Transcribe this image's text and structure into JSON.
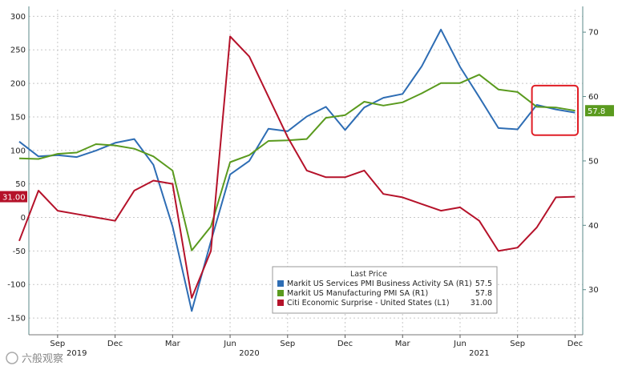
{
  "chart_data": {
    "type": "line",
    "grid": true,
    "x": [
      "2019-07",
      "2019-08",
      "2019-09",
      "2019-10",
      "2019-11",
      "2019-12",
      "2020-01",
      "2020-02",
      "2020-03",
      "2020-04",
      "2020-05",
      "2020-06",
      "2020-07",
      "2020-08",
      "2020-09",
      "2020-10",
      "2020-11",
      "2020-12",
      "2021-01",
      "2021-02",
      "2021-03",
      "2021-04",
      "2021-05",
      "2021-06",
      "2021-07",
      "2021-08",
      "2021-09",
      "2021-10",
      "2021-11",
      "2021-12"
    ],
    "x_tick_labels": [
      {
        "date": "2019-09",
        "label": "Sep"
      },
      {
        "date": "2019-12",
        "label": "Dec"
      },
      {
        "date": "2020-03",
        "label": "Mar"
      },
      {
        "date": "2020-06",
        "label": "Jun"
      },
      {
        "date": "2020-09",
        "label": "Sep"
      },
      {
        "date": "2020-12",
        "label": "Dec"
      },
      {
        "date": "2021-03",
        "label": "Mar"
      },
      {
        "date": "2021-06",
        "label": "Jun"
      },
      {
        "date": "2021-09",
        "label": "Sep"
      },
      {
        "date": "2021-12",
        "label": "Dec"
      }
    ],
    "year_labels": [
      {
        "date": "2019-10",
        "label": "2019"
      },
      {
        "date": "2020-07",
        "label": "2020"
      },
      {
        "date": "2021-07",
        "label": "2021"
      }
    ],
    "left_axis": {
      "ylim": [
        -175,
        310
      ],
      "ticks": [
        300,
        250,
        200,
        150,
        100,
        50,
        0,
        -50,
        -100,
        -150
      ]
    },
    "right_axis": {
      "ylim": [
        23,
        73.5
      ],
      "ticks": [
        70,
        60,
        50,
        40,
        30
      ]
    },
    "series": [
      {
        "name": "Markit US Services PMI Business Activity SA",
        "axis": "R1",
        "color": "#2e6db4",
        "x": [
          "2019-07",
          "2019-08",
          "2019-09",
          "2019-10",
          "2019-11",
          "2019-12",
          "2020-01",
          "2020-02",
          "2020-03",
          "2020-04",
          "2020-05",
          "2020-06",
          "2020-07",
          "2020-08",
          "2020-09",
          "2020-10",
          "2020-11",
          "2020-12",
          "2021-01",
          "2021-02",
          "2021-03",
          "2021-04",
          "2021-05",
          "2021-06",
          "2021-07",
          "2021-08",
          "2021-09",
          "2021-10",
          "2021-11",
          "2021-12"
        ],
        "values": [
          53.0,
          50.7,
          50.9,
          50.6,
          51.6,
          52.8,
          53.4,
          49.4,
          39.8,
          26.7,
          37.5,
          47.9,
          50.0,
          55.0,
          54.6,
          56.9,
          58.4,
          54.8,
          58.3,
          59.8,
          60.4,
          64.7,
          70.4,
          64.6,
          59.9,
          55.1,
          54.9,
          58.7,
          58.0,
          57.5
        ]
      },
      {
        "name": "Markit US Manufacturing PMI SA",
        "axis": "R1",
        "color": "#5a9a1e",
        "x": [
          "2019-07",
          "2019-08",
          "2019-09",
          "2019-10",
          "2019-11",
          "2019-12",
          "2020-01",
          "2020-02",
          "2020-03",
          "2020-04",
          "2020-05",
          "2020-06",
          "2020-07",
          "2020-08",
          "2020-09",
          "2020-10",
          "2020-11",
          "2020-12",
          "2021-01",
          "2021-02",
          "2021-03",
          "2021-04",
          "2021-05",
          "2021-06",
          "2021-07",
          "2021-08",
          "2021-09",
          "2021-10",
          "2021-11",
          "2021-12"
        ],
        "values": [
          50.4,
          50.3,
          51.1,
          51.3,
          52.6,
          52.4,
          51.9,
          50.7,
          48.5,
          36.1,
          39.8,
          49.8,
          50.9,
          53.1,
          53.2,
          53.4,
          56.7,
          57.1,
          59.2,
          58.6,
          59.1,
          60.5,
          62.1,
          62.1,
          63.4,
          61.1,
          60.7,
          58.4,
          58.3,
          57.8
        ]
      },
      {
        "name": "Citi Economic Surprise - United States",
        "axis": "L1",
        "color": "#b5122a",
        "x": [
          "2019-07",
          "2019-08",
          "2019-09",
          "2019-10",
          "2019-11",
          "2019-12",
          "2020-01",
          "2020-02",
          "2020-03",
          "2020-04",
          "2020-05",
          "2020-06",
          "2020-07",
          "2020-08",
          "2020-09",
          "2020-10",
          "2020-11",
          "2020-12",
          "2021-01",
          "2021-02",
          "2021-03",
          "2021-04",
          "2021-05",
          "2021-06",
          "2021-07",
          "2021-08",
          "2021-09",
          "2021-10",
          "2021-11",
          "2021-12"
        ],
        "values": [
          -35,
          40,
          10,
          5,
          0,
          -5,
          40,
          55,
          50,
          -120,
          -50,
          270,
          240,
          180,
          120,
          70,
          60,
          60,
          70,
          35,
          30,
          20,
          10,
          15,
          -5,
          -50,
          -45,
          -15,
          30,
          31
        ]
      }
    ],
    "legend": {
      "title": "Last Price",
      "placement": "bottom-center",
      "entries": [
        {
          "label": "Markit US Services PMI Business Activity SA  (R1)",
          "value": "57.5",
          "color": "#2e6db4"
        },
        {
          "label": "Markit US Manufacturing PMI SA  (R1)",
          "value": "57.8",
          "color": "#5a9a1e"
        },
        {
          "label": "Citi Economic Surprise - United States  (L1)",
          "value": "31.00",
          "color": "#b5122a"
        }
      ]
    },
    "last_value_tags": [
      {
        "axis": "L1",
        "text": "31.00",
        "color": "#b5122a"
      },
      {
        "axis": "R1",
        "text": "57.8",
        "color": "#5a9a1e"
      }
    ],
    "highlight_box_color": "#e01e26"
  },
  "watermark": "六般观察"
}
